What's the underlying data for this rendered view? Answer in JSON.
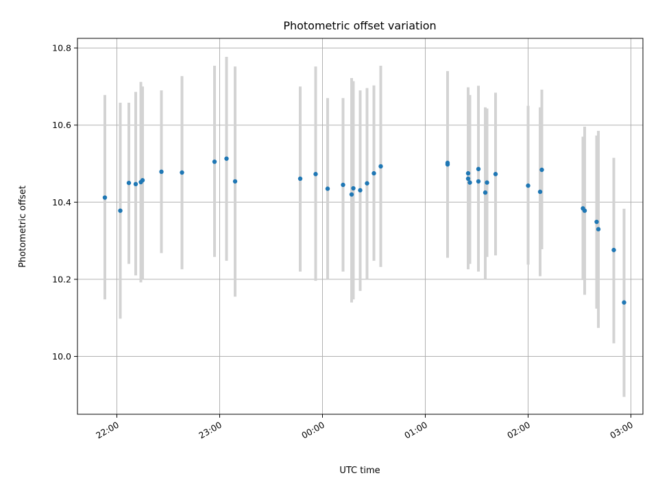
{
  "chart_data": {
    "type": "scatter",
    "title": "Photometric offset variation",
    "xlabel": "UTC time",
    "ylabel": "Photometric offset",
    "xlim": [
      "21:37",
      "03:07"
    ],
    "ylim": [
      9.85,
      10.825
    ],
    "x_ticks": [
      "22:00",
      "23:00",
      "00:00",
      "01:00",
      "02:00",
      "03:00"
    ],
    "y_ticks": [
      "10.0",
      "10.2",
      "10.4",
      "10.6",
      "10.8"
    ],
    "grid": true,
    "colors": {
      "point": "#1f77b4",
      "errorbar": "#d3d3d3",
      "grid": "#b0b0b0"
    },
    "points": [
      {
        "time": "21:53",
        "y": 10.412,
        "ylow": 10.148,
        "yhigh": 10.678
      },
      {
        "time": "22:02",
        "y": 10.378,
        "ylow": 10.098,
        "yhigh": 10.658
      },
      {
        "time": "22:07",
        "y": 10.45,
        "ylow": 10.24,
        "yhigh": 10.658
      },
      {
        "time": "22:11",
        "y": 10.447,
        "ylow": 10.21,
        "yhigh": 10.686
      },
      {
        "time": "22:14",
        "y": 10.452,
        "ylow": 10.192,
        "yhigh": 10.712
      },
      {
        "time": "22:15",
        "y": 10.457,
        "ylow": 10.2,
        "yhigh": 10.7
      },
      {
        "time": "22:26",
        "y": 10.479,
        "ylow": 10.268,
        "yhigh": 10.69
      },
      {
        "time": "22:38",
        "y": 10.477,
        "ylow": 10.226,
        "yhigh": 10.727
      },
      {
        "time": "22:57",
        "y": 10.505,
        "ylow": 10.258,
        "yhigh": 10.754
      },
      {
        "time": "23:04",
        "y": 10.513,
        "ylow": 10.248,
        "yhigh": 10.777
      },
      {
        "time": "23:09",
        "y": 10.454,
        "ylow": 10.155,
        "yhigh": 10.752
      },
      {
        "time": "23:47",
        "y": 10.461,
        "ylow": 10.22,
        "yhigh": 10.7
      },
      {
        "time": "23:56",
        "y": 10.473,
        "ylow": 10.196,
        "yhigh": 10.752
      },
      {
        "time": "00:03",
        "y": 10.435,
        "ylow": 10.2,
        "yhigh": 10.67
      },
      {
        "time": "00:12",
        "y": 10.445,
        "ylow": 10.22,
        "yhigh": 10.67
      },
      {
        "time": "00:17",
        "y": 10.42,
        "ylow": 10.14,
        "yhigh": 10.722
      },
      {
        "time": "00:18",
        "y": 10.436,
        "ylow": 10.148,
        "yhigh": 10.714
      },
      {
        "time": "00:22",
        "y": 10.431,
        "ylow": 10.17,
        "yhigh": 10.69
      },
      {
        "time": "00:26",
        "y": 10.449,
        "ylow": 10.2,
        "yhigh": 10.696
      },
      {
        "time": "00:30",
        "y": 10.475,
        "ylow": 10.248,
        "yhigh": 10.703
      },
      {
        "time": "00:34",
        "y": 10.493,
        "ylow": 10.232,
        "yhigh": 10.754
      },
      {
        "time": "01:13",
        "y": 10.502,
        "ylow": 10.256,
        "yhigh": 10.74
      },
      {
        "time": "01:13",
        "y": 10.498,
        "ylow": 10.256,
        "yhigh": 10.74
      },
      {
        "time": "01:25",
        "y": 10.475,
        "ylow": 10.226,
        "yhigh": 10.698
      },
      {
        "time": "01:25",
        "y": 10.461,
        "ylow": 10.236,
        "yhigh": 10.686
      },
      {
        "time": "01:26",
        "y": 10.451,
        "ylow": 10.24,
        "yhigh": 10.678
      },
      {
        "time": "01:31",
        "y": 10.486,
        "ylow": 10.26,
        "yhigh": 10.702
      },
      {
        "time": "01:31",
        "y": 10.454,
        "ylow": 10.22,
        "yhigh": 10.69
      },
      {
        "time": "01:35",
        "y": 10.425,
        "ylow": 10.2,
        "yhigh": 10.646
      },
      {
        "time": "01:36",
        "y": 10.451,
        "ylow": 10.258,
        "yhigh": 10.643
      },
      {
        "time": "01:41",
        "y": 10.473,
        "ylow": 10.262,
        "yhigh": 10.684
      },
      {
        "time": "02:00",
        "y": 10.443,
        "ylow": 10.238,
        "yhigh": 10.65
      },
      {
        "time": "02:07",
        "y": 10.427,
        "ylow": 10.208,
        "yhigh": 10.646
      },
      {
        "time": "02:08",
        "y": 10.484,
        "ylow": 10.278,
        "yhigh": 10.692
      },
      {
        "time": "02:32",
        "y": 10.384,
        "ylow": 10.198,
        "yhigh": 10.57
      },
      {
        "time": "02:33",
        "y": 10.378,
        "ylow": 10.16,
        "yhigh": 10.596
      },
      {
        "time": "02:40",
        "y": 10.349,
        "ylow": 10.124,
        "yhigh": 10.573
      },
      {
        "time": "02:41",
        "y": 10.33,
        "ylow": 10.074,
        "yhigh": 10.585
      },
      {
        "time": "02:50",
        "y": 10.276,
        "ylow": 10.034,
        "yhigh": 10.515
      },
      {
        "time": "02:56",
        "y": 10.14,
        "ylow": 9.895,
        "yhigh": 10.383
      }
    ]
  }
}
